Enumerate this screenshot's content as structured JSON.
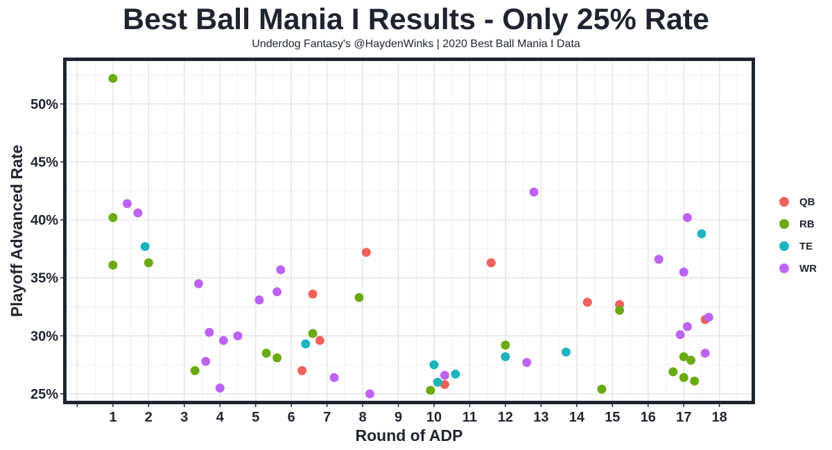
{
  "chart_data": {
    "type": "scatter",
    "title": "Best Ball Mania I Results - Only 25% Rate",
    "subtitle": "Underdog Fantasy's @HaydenWinks | 2020 Best Ball Mania I Data",
    "xlabel": "Round of ADP",
    "ylabel": "Playoff Advanced Rate",
    "xlim": [
      -0.3,
      18.9
    ],
    "ylim": [
      0.244,
      0.537
    ],
    "x_ticks": [
      1,
      2,
      3,
      4,
      5,
      6,
      7,
      8,
      9,
      10,
      11,
      12,
      13,
      14,
      15,
      16,
      17,
      18
    ],
    "y_ticks": [
      0.25,
      0.3,
      0.35,
      0.4,
      0.45,
      0.5
    ],
    "y_tick_labels": [
      "25%",
      "30%",
      "35%",
      "40%",
      "45%",
      "50%"
    ],
    "grid": true,
    "legend_position": "right",
    "series": [
      {
        "name": "QB",
        "color": "#f0605d",
        "points": [
          [
            6.3,
            0.27
          ],
          [
            6.6,
            0.336
          ],
          [
            6.8,
            0.296
          ],
          [
            8.1,
            0.372
          ],
          [
            10.3,
            0.258
          ],
          [
            11.6,
            0.363
          ],
          [
            14.3,
            0.329
          ],
          [
            15.2,
            0.327
          ],
          [
            17.6,
            0.314
          ]
        ]
      },
      {
        "name": "RB",
        "color": "#6aaa12",
        "points": [
          [
            1.0,
            0.522
          ],
          [
            1.0,
            0.402
          ],
          [
            1.0,
            0.361
          ],
          [
            2.0,
            0.363
          ],
          [
            3.3,
            0.27
          ],
          [
            5.3,
            0.285
          ],
          [
            5.6,
            0.281
          ],
          [
            6.6,
            0.302
          ],
          [
            7.9,
            0.333
          ],
          [
            9.9,
            0.253
          ],
          [
            12.0,
            0.292
          ],
          [
            14.7,
            0.254
          ],
          [
            15.2,
            0.322
          ],
          [
            16.7,
            0.269
          ],
          [
            17.0,
            0.282
          ],
          [
            17.0,
            0.264
          ],
          [
            17.2,
            0.279
          ],
          [
            17.3,
            0.261
          ]
        ]
      },
      {
        "name": "TE",
        "color": "#1eb4bd",
        "points": [
          [
            1.9,
            0.377
          ],
          [
            6.4,
            0.293
          ],
          [
            10.0,
            0.275
          ],
          [
            10.1,
            0.26
          ],
          [
            10.6,
            0.267
          ],
          [
            12.0,
            0.282
          ],
          [
            13.7,
            0.286
          ],
          [
            17.5,
            0.388
          ]
        ]
      },
      {
        "name": "WR",
        "color": "#bd63f3",
        "points": [
          [
            1.4,
            0.414
          ],
          [
            1.7,
            0.406
          ],
          [
            3.4,
            0.345
          ],
          [
            3.6,
            0.278
          ],
          [
            3.7,
            0.303
          ],
          [
            4.0,
            0.255
          ],
          [
            4.1,
            0.296
          ],
          [
            4.5,
            0.3
          ],
          [
            5.1,
            0.331
          ],
          [
            5.6,
            0.338
          ],
          [
            5.7,
            0.357
          ],
          [
            7.2,
            0.264
          ],
          [
            8.2,
            0.25
          ],
          [
            10.3,
            0.266
          ],
          [
            12.6,
            0.277
          ],
          [
            12.8,
            0.424
          ],
          [
            16.3,
            0.366
          ],
          [
            16.9,
            0.301
          ],
          [
            17.0,
            0.355
          ],
          [
            17.1,
            0.308
          ],
          [
            17.1,
            0.402
          ],
          [
            17.6,
            0.285
          ],
          [
            17.7,
            0.316
          ]
        ]
      }
    ]
  }
}
